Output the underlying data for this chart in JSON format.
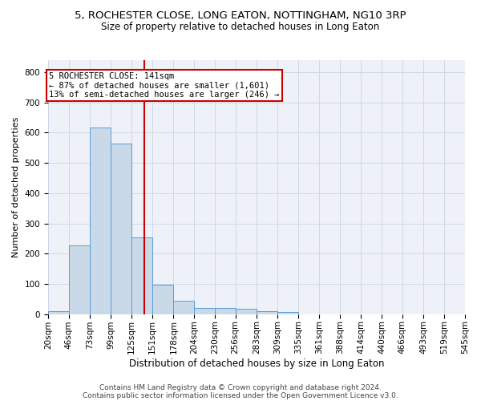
{
  "title": "5, ROCHESTER CLOSE, LONG EATON, NOTTINGHAM, NG10 3RP",
  "subtitle": "Size of property relative to detached houses in Long Eaton",
  "xlabel": "Distribution of detached houses by size in Long Eaton",
  "ylabel": "Number of detached properties",
  "bin_edges": [
    20,
    46,
    73,
    99,
    125,
    151,
    178,
    204,
    230,
    256,
    283,
    309,
    335,
    361,
    388,
    414,
    440,
    466,
    493,
    519,
    545
  ],
  "bar_heights": [
    10,
    228,
    618,
    565,
    255,
    98,
    43,
    20,
    20,
    18,
    10,
    6,
    0,
    0,
    0,
    0,
    0,
    0,
    0,
    0
  ],
  "bar_facecolor": "#c9d9e8",
  "bar_edgecolor": "#5b9bd5",
  "grid_color": "#d0d8e8",
  "background_color": "#eef2f8",
  "vline_x": 141,
  "vline_color": "#cc0000",
  "annotation_text": "5 ROCHESTER CLOSE: 141sqm\n← 87% of detached houses are smaller (1,601)\n13% of semi-detached houses are larger (246) →",
  "annotation_box_facecolor": "white",
  "annotation_box_edgecolor": "#cc0000",
  "ylim": [
    0,
    840
  ],
  "yticks": [
    0,
    100,
    200,
    300,
    400,
    500,
    600,
    700,
    800
  ],
  "footer_line1": "Contains HM Land Registry data © Crown copyright and database right 2024.",
  "footer_line2": "Contains public sector information licensed under the Open Government Licence v3.0.",
  "title_fontsize": 9.5,
  "subtitle_fontsize": 8.5,
  "xlabel_fontsize": 8.5,
  "ylabel_fontsize": 8,
  "tick_fontsize": 7.5,
  "footer_fontsize": 6.5,
  "annotation_fontsize": 7.5
}
